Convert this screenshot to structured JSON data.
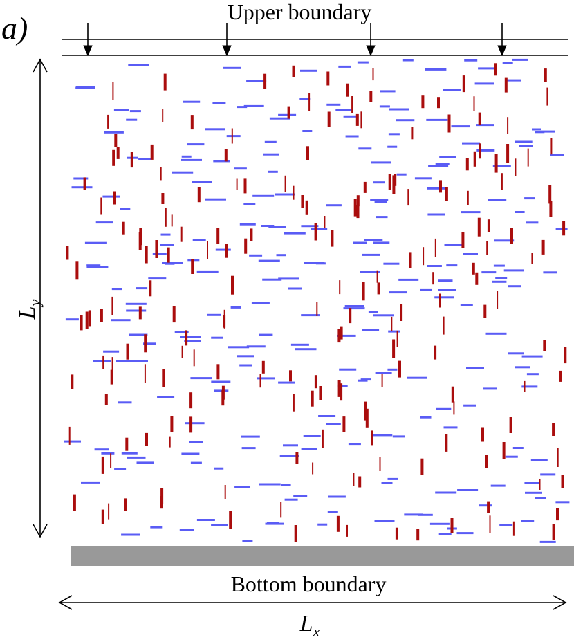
{
  "panel_label": "a)",
  "upper_boundary_label": "Upper boundary",
  "bottom_boundary_label": "Bottom boundary",
  "ly_label": {
    "main": "L",
    "sub": "y"
  },
  "lx_label": {
    "main": "L",
    "sub": "x"
  },
  "colors": {
    "horizontal_segment": "#5a5cf5",
    "vertical_segment": "#aa0d0d",
    "bottom_plate": "#999999",
    "line": "#000000"
  }
}
